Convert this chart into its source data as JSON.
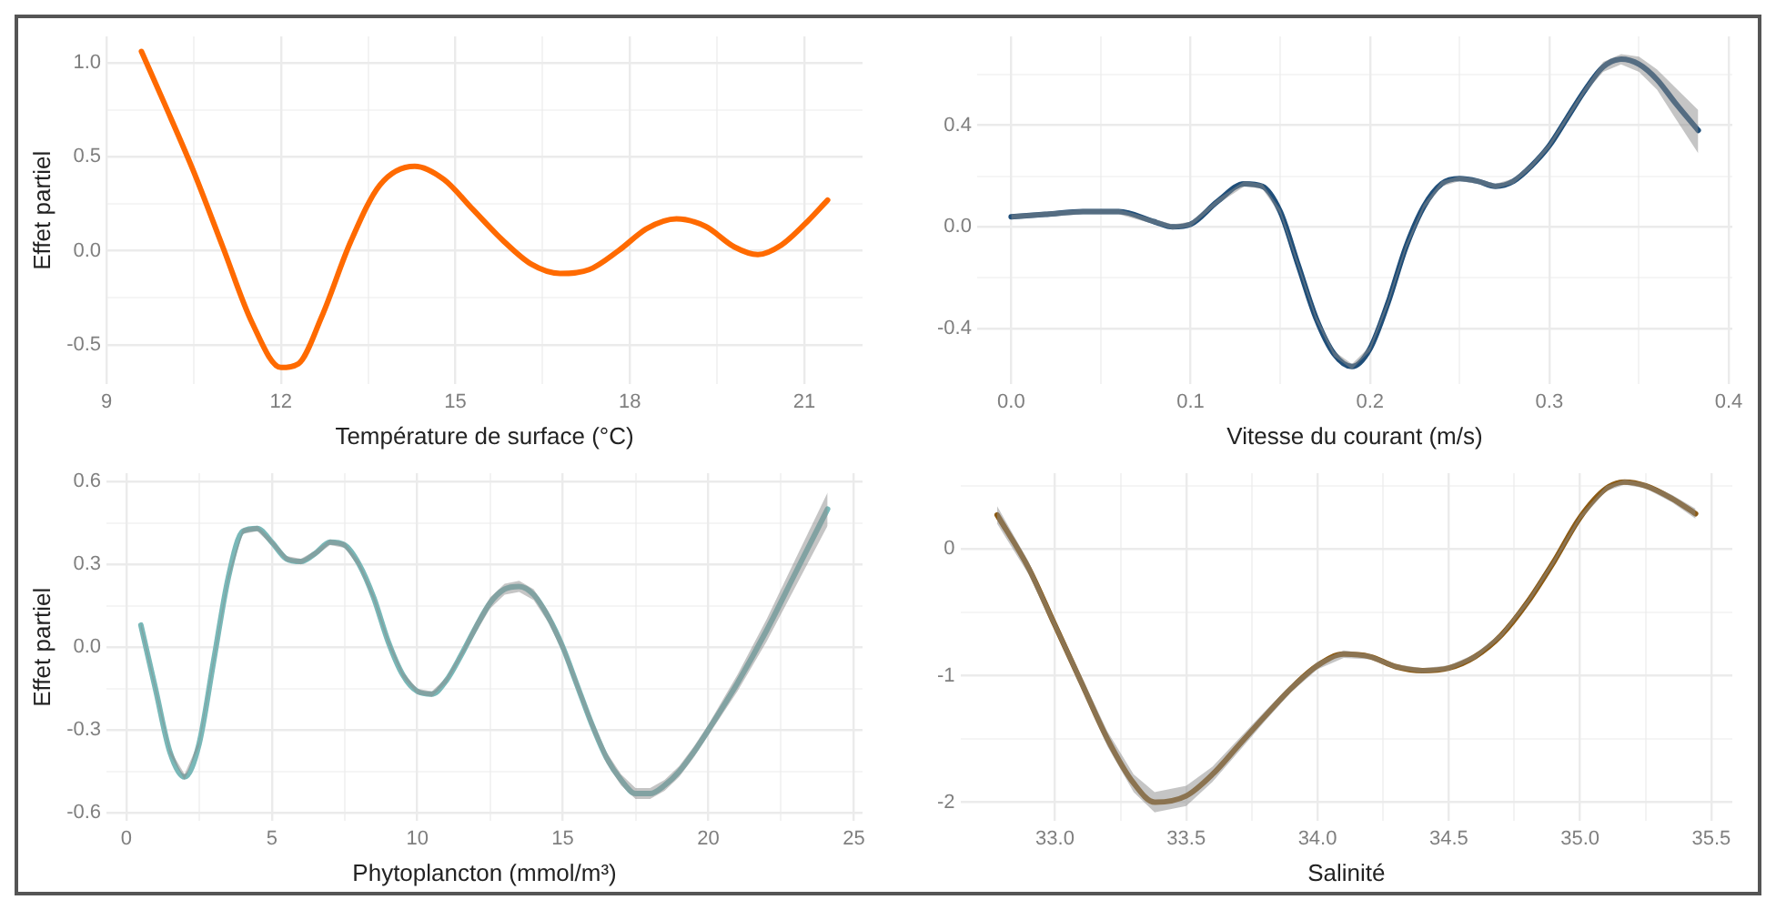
{
  "chart_data": [
    {
      "type": "line",
      "xlabel": "Température de surface (°C)",
      "ylabel": "Effet partiel",
      "xlim": [
        9.0,
        22.0
      ],
      "ylim": [
        -0.71,
        1.14
      ],
      "xticks": [
        9,
        {
          "value": 10.5,
          "label": null
        },
        12,
        {
          "value": 13.5,
          "label": null
        },
        15,
        {
          "value": 16.5,
          "label": null
        },
        18,
        {
          "value": 19.5,
          "label": null
        },
        21
      ],
      "yticks": [
        {
          "value": -0.5,
          "label": "-0.5"
        },
        {
          "value": -0.25,
          "label": null
        },
        {
          "value": 0,
          "label": "0.0"
        },
        {
          "value": 0.25,
          "label": null
        },
        {
          "value": 0.5,
          "label": "0.5"
        },
        {
          "value": 0.75,
          "label": null
        },
        {
          "value": 1,
          "label": "1.0"
        }
      ],
      "grid": true,
      "legend": false,
      "marker": "none",
      "series": [
        {
          "color": "#ff6a00",
          "x": [
            9.6,
            10.0,
            10.5,
            11.0,
            11.5,
            12.0,
            12.3,
            12.7,
            13.2,
            13.7,
            14.3,
            14.8,
            15.3,
            15.8,
            16.3,
            16.8,
            17.3,
            17.8,
            18.3,
            18.8,
            19.3,
            19.8,
            20.2,
            20.6,
            21.0,
            21.4
          ],
          "values": [
            1.06,
            0.78,
            0.42,
            0.02,
            -0.38,
            -0.62,
            -0.6,
            -0.35,
            0.05,
            0.35,
            0.45,
            0.38,
            0.22,
            0.06,
            -0.07,
            -0.12,
            -0.1,
            0.0,
            0.12,
            0.17,
            0.13,
            0.02,
            -0.02,
            0.03,
            0.14,
            0.27
          ]
        }
      ]
    },
    {
      "type": "line",
      "xlabel": "Vitesse du courant (m/s)",
      "xlim": [
        -0.019,
        0.402
      ],
      "ylim": [
        -0.62,
        0.75
      ],
      "xticks": [
        {
          "value": 0,
          "label": "0.0"
        },
        {
          "value": 0.05,
          "label": null
        },
        0.1,
        {
          "value": 0.15,
          "label": null
        },
        0.2,
        {
          "value": 0.25,
          "label": null
        },
        0.3,
        {
          "value": 0.35,
          "label": null
        },
        0.4
      ],
      "yticks": [
        -0.4,
        {
          "value": -0.2,
          "label": null
        },
        {
          "value": 0,
          "label": "0.0"
        },
        {
          "value": 0.2,
          "label": null
        },
        0.4,
        {
          "value": 0.6,
          "label": null
        }
      ],
      "grid": true,
      "legend": false,
      "marker": "none",
      "series": [
        {
          "color": "#1f4e79",
          "x": [
            0,
            0.02,
            0.04,
            0.06,
            0.08,
            0.09,
            0.1,
            0.115,
            0.13,
            0.14,
            0.15,
            0.16,
            0.17,
            0.18,
            0.19,
            0.2,
            0.21,
            0.22,
            0.23,
            0.24,
            0.25,
            0.26,
            0.27,
            0.28,
            0.29,
            0.3,
            0.31,
            0.32,
            0.33,
            0.34,
            0.35,
            0.36,
            0.37,
            0.383
          ],
          "values": [
            0.04,
            0.05,
            0.06,
            0.06,
            0.02,
            0.0,
            0.01,
            0.1,
            0.17,
            0.16,
            0.06,
            -0.15,
            -0.36,
            -0.5,
            -0.55,
            -0.48,
            -0.3,
            -0.08,
            0.08,
            0.17,
            0.19,
            0.18,
            0.16,
            0.18,
            0.24,
            0.32,
            0.43,
            0.54,
            0.63,
            0.66,
            0.64,
            0.58,
            0.49,
            0.38
          ],
          "lower": [
            0.03,
            0.04,
            0.05,
            0.05,
            0.01,
            -0.01,
            0.0,
            0.09,
            0.16,
            0.15,
            0.05,
            -0.16,
            -0.37,
            -0.51,
            -0.56,
            -0.49,
            -0.31,
            -0.09,
            0.07,
            0.16,
            0.18,
            0.17,
            0.15,
            0.17,
            0.23,
            0.31,
            0.42,
            0.53,
            0.61,
            0.64,
            0.61,
            0.54,
            0.43,
            0.29
          ],
          "upper": [
            0.05,
            0.06,
            0.07,
            0.07,
            0.03,
            0.01,
            0.02,
            0.11,
            0.18,
            0.17,
            0.07,
            -0.14,
            -0.35,
            -0.49,
            -0.54,
            -0.47,
            -0.29,
            -0.07,
            0.09,
            0.18,
            0.2,
            0.19,
            0.17,
            0.19,
            0.25,
            0.33,
            0.44,
            0.55,
            0.65,
            0.68,
            0.67,
            0.62,
            0.55,
            0.46
          ]
        }
      ]
    },
    {
      "type": "line",
      "xlabel": "Phytoplancton (mmol/m³)",
      "ylabel": "Effet partiel",
      "xlim": [
        -0.68,
        25.3
      ],
      "ylim": [
        -0.63,
        0.63
      ],
      "xticks": [
        0,
        {
          "value": 2.5,
          "label": null
        },
        5,
        {
          "value": 7.5,
          "label": null
        },
        10,
        {
          "value": 12.5,
          "label": null
        },
        15,
        {
          "value": 17.5,
          "label": null
        },
        20,
        {
          "value": 22.5,
          "label": null
        },
        25
      ],
      "yticks": [
        -0.6,
        {
          "value": -0.45,
          "label": null
        },
        -0.3,
        {
          "value": -0.15,
          "label": null
        },
        {
          "value": 0,
          "label": "0.0"
        },
        {
          "value": 0.15,
          "label": null
        },
        0.3,
        {
          "value": 0.45,
          "label": null
        },
        0.6
      ],
      "grid": true,
      "legend": false,
      "marker": "none",
      "series": [
        {
          "color": "#79b8b8",
          "x": [
            0.5,
            1.0,
            1.5,
            2.0,
            2.5,
            3.0,
            3.5,
            4.0,
            4.5,
            5.0,
            5.5,
            6.0,
            6.5,
            7.0,
            7.5,
            8.0,
            8.5,
            9.0,
            9.5,
            10.0,
            10.5,
            11.0,
            11.5,
            12.0,
            12.5,
            13.0,
            13.5,
            14.0,
            14.5,
            15.0,
            15.5,
            16.0,
            16.5,
            17.0,
            17.5,
            18.0,
            18.5,
            19.0,
            19.5,
            20.0,
            21.0,
            22.0,
            23.0,
            24.1
          ],
          "values": [
            0.08,
            -0.15,
            -0.38,
            -0.47,
            -0.35,
            -0.05,
            0.25,
            0.42,
            0.43,
            0.38,
            0.32,
            0.31,
            0.34,
            0.38,
            0.37,
            0.3,
            0.18,
            0.02,
            -0.1,
            -0.16,
            -0.17,
            -0.12,
            -0.03,
            0.07,
            0.16,
            0.21,
            0.22,
            0.19,
            0.11,
            0.0,
            -0.14,
            -0.28,
            -0.4,
            -0.48,
            -0.53,
            -0.53,
            -0.5,
            -0.45,
            -0.38,
            -0.3,
            -0.13,
            0.06,
            0.27,
            0.5
          ],
          "lower": [
            0.07,
            -0.16,
            -0.39,
            -0.48,
            -0.36,
            -0.06,
            0.24,
            0.41,
            0.42,
            0.37,
            0.31,
            0.3,
            0.33,
            0.37,
            0.36,
            0.29,
            0.17,
            0.01,
            -0.11,
            -0.17,
            -0.18,
            -0.13,
            -0.04,
            0.05,
            0.14,
            0.19,
            0.2,
            0.17,
            0.09,
            -0.02,
            -0.16,
            -0.3,
            -0.42,
            -0.5,
            -0.55,
            -0.55,
            -0.52,
            -0.47,
            -0.4,
            -0.32,
            -0.16,
            0.02,
            0.22,
            0.44
          ],
          "upper": [
            0.09,
            -0.14,
            -0.37,
            -0.46,
            -0.34,
            -0.04,
            0.26,
            0.43,
            0.44,
            0.39,
            0.33,
            0.32,
            0.35,
            0.39,
            0.38,
            0.31,
            0.19,
            0.03,
            -0.09,
            -0.15,
            -0.16,
            -0.11,
            -0.02,
            0.09,
            0.18,
            0.23,
            0.24,
            0.21,
            0.13,
            0.02,
            -0.12,
            -0.26,
            -0.38,
            -0.46,
            -0.51,
            -0.51,
            -0.48,
            -0.43,
            -0.36,
            -0.28,
            -0.1,
            0.1,
            0.32,
            0.56
          ]
        }
      ]
    },
    {
      "type": "line",
      "xlabel": "Salinité",
      "xlim": [
        32.64,
        35.58
      ],
      "ylim": [
        -2.15,
        0.6
      ],
      "xticks": [
        {
          "value": 33,
          "label": "33.0"
        },
        {
          "value": 33.25,
          "label": null
        },
        33.5,
        {
          "value": 33.75,
          "label": null
        },
        {
          "value": 34,
          "label": "34.0"
        },
        {
          "value": 34.25,
          "label": null
        },
        34.5,
        {
          "value": 34.75,
          "label": null
        },
        {
          "value": 35,
          "label": "35.0"
        },
        {
          "value": 35.25,
          "label": null
        },
        35.5
      ],
      "yticks": [
        -2,
        {
          "value": -1.5,
          "label": null
        },
        -1,
        {
          "value": -0.5,
          "label": null
        },
        0,
        {
          "value": 0.5,
          "label": null
        }
      ],
      "grid": true,
      "legend": false,
      "marker": "none",
      "series": [
        {
          "color": "#8b5a14",
          "x": [
            32.78,
            32.9,
            33.0,
            33.1,
            33.2,
            33.3,
            33.38,
            33.5,
            33.6,
            33.7,
            33.8,
            33.9,
            34.0,
            34.1,
            34.2,
            34.3,
            34.4,
            34.5,
            34.6,
            34.7,
            34.8,
            34.9,
            35.0,
            35.1,
            35.17,
            35.25,
            35.35,
            35.44
          ],
          "values": [
            0.27,
            -0.15,
            -0.6,
            -1.05,
            -1.5,
            -1.85,
            -2.0,
            -1.95,
            -1.78,
            -1.55,
            -1.32,
            -1.1,
            -0.92,
            -0.83,
            -0.85,
            -0.93,
            -0.96,
            -0.94,
            -0.85,
            -0.68,
            -0.42,
            -0.1,
            0.25,
            0.48,
            0.53,
            0.5,
            0.4,
            0.28
          ],
          "lower": [
            0.2,
            -0.2,
            -0.64,
            -1.1,
            -1.56,
            -1.92,
            -2.08,
            -2.03,
            -1.84,
            -1.6,
            -1.36,
            -1.13,
            -0.95,
            -0.86,
            -0.87,
            -0.95,
            -0.98,
            -0.96,
            -0.87,
            -0.7,
            -0.44,
            -0.12,
            0.23,
            0.46,
            0.51,
            0.48,
            0.37,
            0.24
          ],
          "upper": [
            0.34,
            -0.1,
            -0.56,
            -1.0,
            -1.44,
            -1.78,
            -1.92,
            -1.87,
            -1.72,
            -1.5,
            -1.28,
            -1.07,
            -0.89,
            -0.8,
            -0.83,
            -0.91,
            -0.94,
            -0.92,
            -0.83,
            -0.66,
            -0.4,
            -0.08,
            0.27,
            0.5,
            0.55,
            0.52,
            0.43,
            0.32
          ]
        }
      ]
    }
  ]
}
